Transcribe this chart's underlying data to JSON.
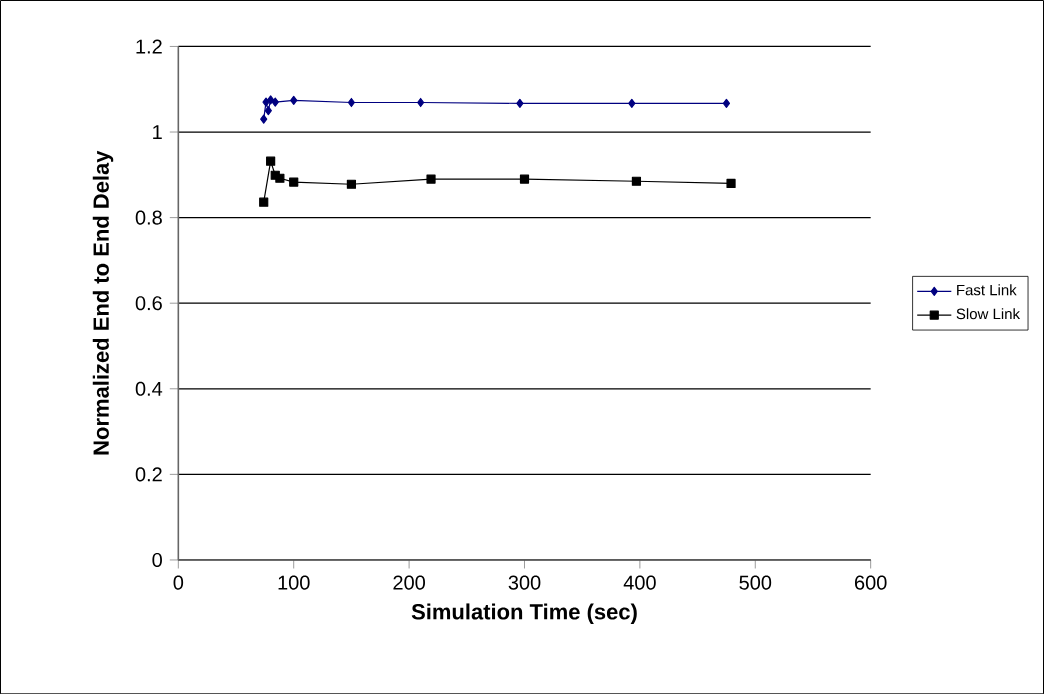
{
  "chart_data": {
    "type": "line",
    "xlabel": "Simulation Time (sec)",
    "ylabel": "Normalized End to End Delay",
    "xlim": [
      0,
      600
    ],
    "xticks": [
      0,
      100,
      200,
      300,
      400,
      500,
      600
    ],
    "ylim": [
      0,
      1.2
    ],
    "yticks": [
      0,
      0.2,
      0.4,
      0.6,
      0.8,
      1,
      1.2
    ],
    "grid": "y",
    "legend": "right",
    "series": [
      {
        "name": "Fast Link",
        "color": "#000080",
        "marker": "diamond",
        "x": [
          74,
          76,
          78,
          80,
          84,
          100,
          150,
          210,
          296,
          393,
          475
        ],
        "values": [
          1.03,
          1.07,
          1.05,
          1.075,
          1.07,
          1.074,
          1.069,
          1.069,
          1.067,
          1.067,
          1.067
        ]
      },
      {
        "name": "Slow Link",
        "color": "#000000",
        "marker": "square",
        "x": [
          74,
          80,
          84,
          88,
          100,
          150,
          219,
          300,
          397,
          479
        ],
        "values": [
          0.836,
          0.932,
          0.899,
          0.892,
          0.883,
          0.878,
          0.89,
          0.89,
          0.885,
          0.88
        ]
      }
    ]
  }
}
